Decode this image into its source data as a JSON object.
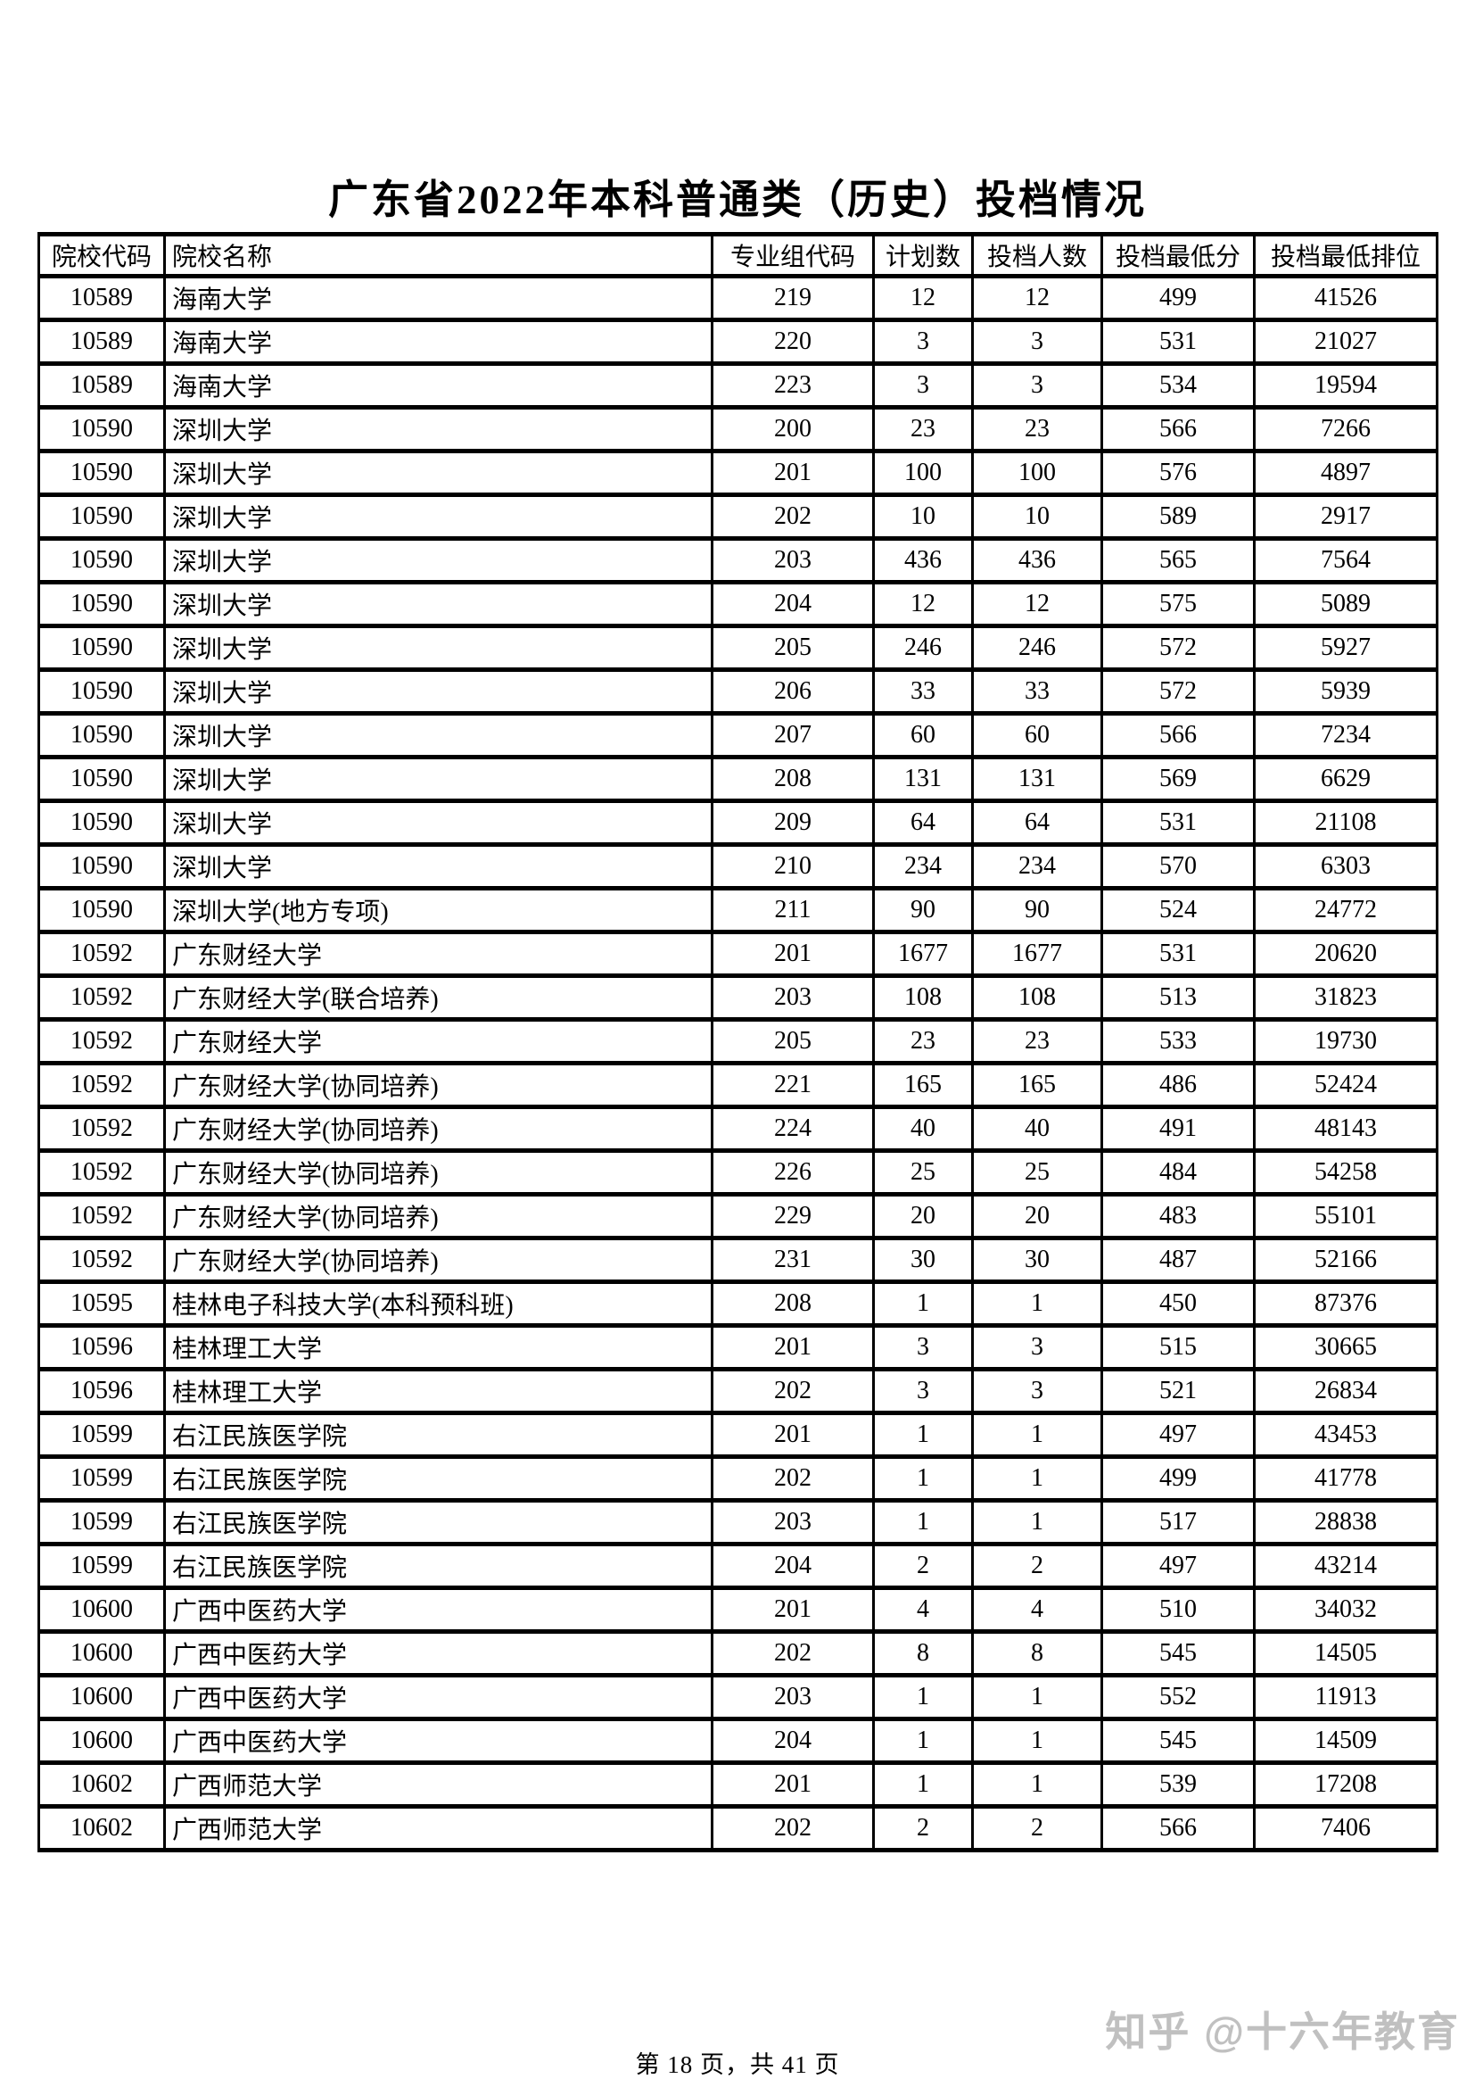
{
  "title": "广东省2022年本科普通类（历史）投档情况",
  "table": {
    "headers": [
      "院校代码",
      "院校名称",
      "专业组代码",
      "计划数",
      "投档人数",
      "投档最低分",
      "投档最低排位"
    ],
    "column_keys": [
      "school-code",
      "school-name",
      "major-group-code",
      "plan-count",
      "submitted-count",
      "min-score",
      "min-rank"
    ],
    "rows": [
      [
        "10589",
        "海南大学",
        "219",
        "12",
        "12",
        "499",
        "41526"
      ],
      [
        "10589",
        "海南大学",
        "220",
        "3",
        "3",
        "531",
        "21027"
      ],
      [
        "10589",
        "海南大学",
        "223",
        "3",
        "3",
        "534",
        "19594"
      ],
      [
        "10590",
        "深圳大学",
        "200",
        "23",
        "23",
        "566",
        "7266"
      ],
      [
        "10590",
        "深圳大学",
        "201",
        "100",
        "100",
        "576",
        "4897"
      ],
      [
        "10590",
        "深圳大学",
        "202",
        "10",
        "10",
        "589",
        "2917"
      ],
      [
        "10590",
        "深圳大学",
        "203",
        "436",
        "436",
        "565",
        "7564"
      ],
      [
        "10590",
        "深圳大学",
        "204",
        "12",
        "12",
        "575",
        "5089"
      ],
      [
        "10590",
        "深圳大学",
        "205",
        "246",
        "246",
        "572",
        "5927"
      ],
      [
        "10590",
        "深圳大学",
        "206",
        "33",
        "33",
        "572",
        "5939"
      ],
      [
        "10590",
        "深圳大学",
        "207",
        "60",
        "60",
        "566",
        "7234"
      ],
      [
        "10590",
        "深圳大学",
        "208",
        "131",
        "131",
        "569",
        "6629"
      ],
      [
        "10590",
        "深圳大学",
        "209",
        "64",
        "64",
        "531",
        "21108"
      ],
      [
        "10590",
        "深圳大学",
        "210",
        "234",
        "234",
        "570",
        "6303"
      ],
      [
        "10590",
        "深圳大学(地方专项)",
        "211",
        "90",
        "90",
        "524",
        "24772"
      ],
      [
        "10592",
        "广东财经大学",
        "201",
        "1677",
        "1677",
        "531",
        "20620"
      ],
      [
        "10592",
        "广东财经大学(联合培养)",
        "203",
        "108",
        "108",
        "513",
        "31823"
      ],
      [
        "10592",
        "广东财经大学",
        "205",
        "23",
        "23",
        "533",
        "19730"
      ],
      [
        "10592",
        "广东财经大学(协同培养)",
        "221",
        "165",
        "165",
        "486",
        "52424"
      ],
      [
        "10592",
        "广东财经大学(协同培养)",
        "224",
        "40",
        "40",
        "491",
        "48143"
      ],
      [
        "10592",
        "广东财经大学(协同培养)",
        "226",
        "25",
        "25",
        "484",
        "54258"
      ],
      [
        "10592",
        "广东财经大学(协同培养)",
        "229",
        "20",
        "20",
        "483",
        "55101"
      ],
      [
        "10592",
        "广东财经大学(协同培养)",
        "231",
        "30",
        "30",
        "487",
        "52166"
      ],
      [
        "10595",
        "桂林电子科技大学(本科预科班)",
        "208",
        "1",
        "1",
        "450",
        "87376"
      ],
      [
        "10596",
        "桂林理工大学",
        "201",
        "3",
        "3",
        "515",
        "30665"
      ],
      [
        "10596",
        "桂林理工大学",
        "202",
        "3",
        "3",
        "521",
        "26834"
      ],
      [
        "10599",
        "右江民族医学院",
        "201",
        "1",
        "1",
        "497",
        "43453"
      ],
      [
        "10599",
        "右江民族医学院",
        "202",
        "1",
        "1",
        "499",
        "41778"
      ],
      [
        "10599",
        "右江民族医学院",
        "203",
        "1",
        "1",
        "517",
        "28838"
      ],
      [
        "10599",
        "右江民族医学院",
        "204",
        "2",
        "2",
        "497",
        "43214"
      ],
      [
        "10600",
        "广西中医药大学",
        "201",
        "4",
        "4",
        "510",
        "34032"
      ],
      [
        "10600",
        "广西中医药大学",
        "202",
        "8",
        "8",
        "545",
        "14505"
      ],
      [
        "10600",
        "广西中医药大学",
        "203",
        "1",
        "1",
        "552",
        "11913"
      ],
      [
        "10600",
        "广西中医药大学",
        "204",
        "1",
        "1",
        "545",
        "14509"
      ],
      [
        "10602",
        "广西师范大学",
        "201",
        "1",
        "1",
        "539",
        "17208"
      ],
      [
        "10602",
        "广西师范大学",
        "202",
        "2",
        "2",
        "566",
        "7406"
      ]
    ]
  },
  "footer": {
    "page_info": "第 18 页，共 41 页"
  },
  "watermark": {
    "text": "知乎 @十六年教育",
    "color": "#c0c0c0"
  }
}
